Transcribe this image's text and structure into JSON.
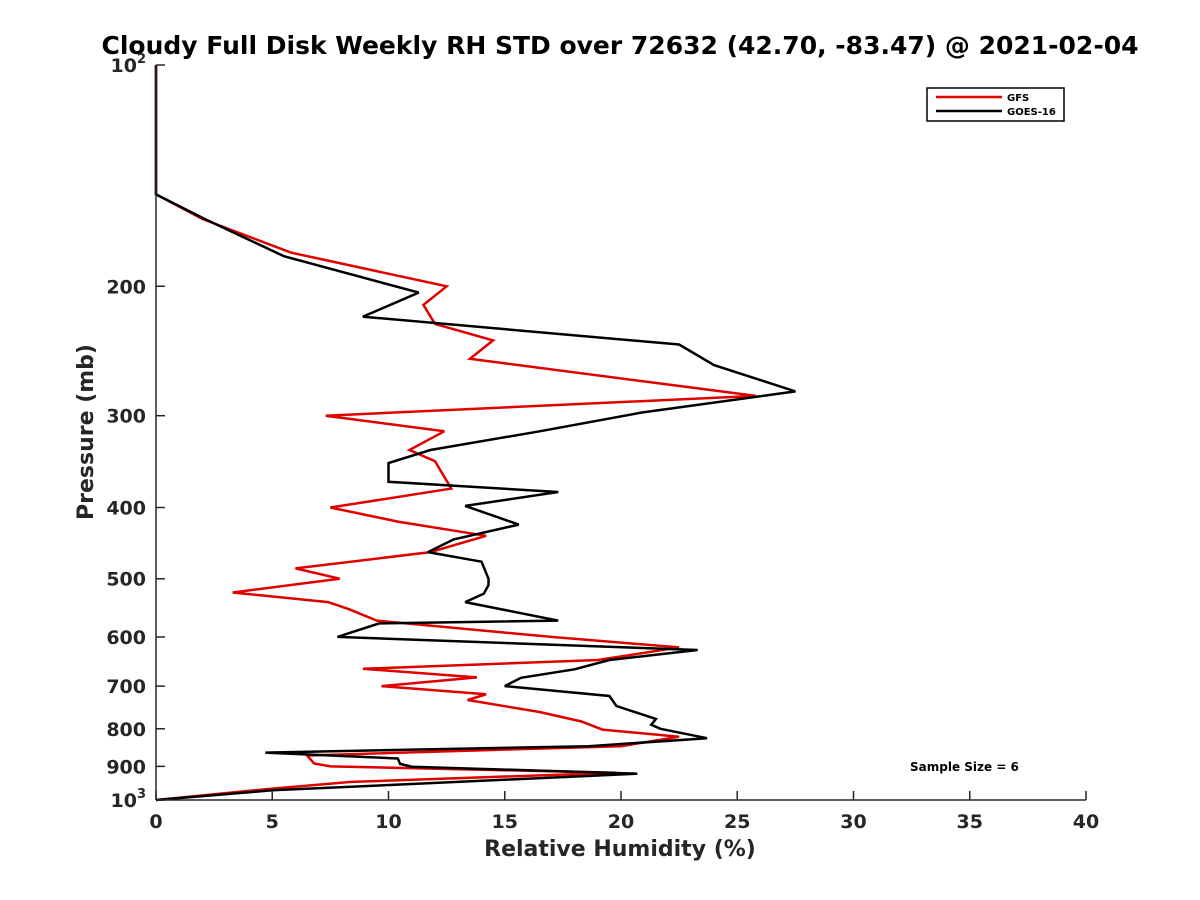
{
  "chart_data": {
    "type": "line",
    "title": "Cloudy Full Disk Weekly RH STD over 72632 (42.70, -83.47) @ 2021-02-04",
    "xlabel": "Relative Humidity (%)",
    "ylabel": "Pressure (mb)",
    "xlim": [
      0,
      40
    ],
    "ylim": [
      100,
      1000
    ],
    "y_scale": "log",
    "y_reversed": true,
    "x_ticks": [
      0,
      5,
      10,
      15,
      20,
      25,
      30,
      35,
      40
    ],
    "y_ticks": [
      {
        "value": 100,
        "base": "10",
        "exp": "2"
      },
      {
        "value": 200,
        "label": "200"
      },
      {
        "value": 300,
        "label": "300"
      },
      {
        "value": 400,
        "label": "400"
      },
      {
        "value": 500,
        "label": "500"
      },
      {
        "value": 600,
        "label": "600"
      },
      {
        "value": 700,
        "label": "700"
      },
      {
        "value": 800,
        "label": "800"
      },
      {
        "value": 900,
        "label": "900"
      },
      {
        "value": 1000,
        "base": "10",
        "exp": "3"
      }
    ],
    "grid": false,
    "legend": {
      "position": "top-right",
      "entries": [
        "GFS",
        "GOES-16"
      ]
    },
    "annotation": "Sample Size = 6",
    "series": [
      {
        "name": "GFS",
        "color": "#e00000",
        "points": [
          [
            0,
            100
          ],
          [
            0,
            125
          ],
          [
            0,
            150
          ],
          [
            2,
            162
          ],
          [
            5.8,
            180
          ],
          [
            12.5,
            200
          ],
          [
            11.5,
            212
          ],
          [
            12,
            225
          ],
          [
            14.5,
            237
          ],
          [
            13.5,
            251
          ],
          [
            25.8,
            282
          ],
          [
            7.3,
            300
          ],
          [
            12.4,
            315
          ],
          [
            10.9,
            334
          ],
          [
            12,
            346
          ],
          [
            12.7,
            377
          ],
          [
            7.5,
            400
          ],
          [
            10.4,
            418
          ],
          [
            14.2,
            437
          ],
          [
            11.8,
            460
          ],
          [
            6,
            484
          ],
          [
            7.9,
            500
          ],
          [
            3.3,
            522
          ],
          [
            7.4,
            538
          ],
          [
            8.3,
            550
          ],
          [
            9.5,
            570
          ],
          [
            17,
            600
          ],
          [
            22.5,
            620
          ],
          [
            19,
            645
          ],
          [
            8.9,
            663
          ],
          [
            13.8,
            681
          ],
          [
            9.7,
            700
          ],
          [
            14.2,
            718
          ],
          [
            13.4,
            731
          ],
          [
            16.5,
            759
          ],
          [
            18.3,
            782
          ],
          [
            19.2,
            802
          ],
          [
            22.5,
            820
          ],
          [
            20,
            845
          ],
          [
            6.5,
            870
          ],
          [
            6.8,
            892
          ],
          [
            7.5,
            900
          ],
          [
            19.8,
            918
          ],
          [
            8.4,
            945
          ],
          [
            5,
            965
          ],
          [
            0,
            1000
          ]
        ]
      },
      {
        "name": "GOES-16",
        "color": "#000000",
        "points": [
          [
            0,
            100
          ],
          [
            0,
            125
          ],
          [
            0,
            150
          ],
          [
            2.1,
            162
          ],
          [
            5.5,
            182
          ],
          [
            11.3,
            204
          ],
          [
            8.9,
            220
          ],
          [
            22.5,
            240
          ],
          [
            24,
            256
          ],
          [
            27.5,
            278
          ],
          [
            20.9,
            297
          ],
          [
            16.5,
            315
          ],
          [
            11.8,
            334
          ],
          [
            10,
            348
          ],
          [
            10,
            369
          ],
          [
            17.3,
            381
          ],
          [
            13.3,
            398
          ],
          [
            15.6,
            422
          ],
          [
            12.8,
            442
          ],
          [
            11.7,
            460
          ],
          [
            14,
            474
          ],
          [
            14.3,
            500
          ],
          [
            14.3,
            510
          ],
          [
            14.1,
            524
          ],
          [
            13.3,
            538
          ],
          [
            17.3,
            570
          ],
          [
            9.6,
            575
          ],
          [
            7.8,
            600
          ],
          [
            23.3,
            625
          ],
          [
            19.5,
            645
          ],
          [
            18,
            664
          ],
          [
            15.7,
            682
          ],
          [
            15,
            700
          ],
          [
            19.5,
            722
          ],
          [
            19.8,
            745
          ],
          [
            21.5,
            776
          ],
          [
            21.3,
            790
          ],
          [
            21.7,
            800
          ],
          [
            23.7,
            824
          ],
          [
            18.6,
            845
          ],
          [
            4.7,
            862
          ],
          [
            10.4,
            878
          ],
          [
            10.5,
            893
          ],
          [
            11,
            901
          ],
          [
            20.7,
            921
          ],
          [
            10.4,
            953
          ],
          [
            5,
            970
          ],
          [
            0,
            1000
          ]
        ]
      }
    ]
  }
}
